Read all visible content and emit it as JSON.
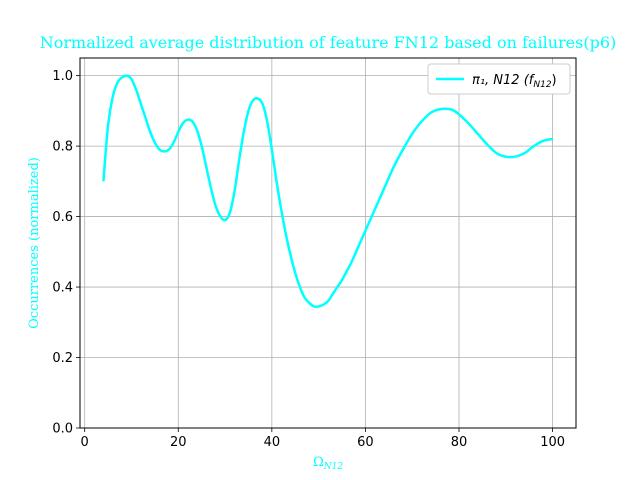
{
  "chart_data": {
    "type": "line",
    "title": "Normalized average distribution of feature FN12 based on failures(p6)",
    "xlabel": "Ω",
    "xlabel_sub": "N12",
    "ylabel": "Occurrences (normalized)",
    "xlim": [
      -1,
      105
    ],
    "ylim": [
      0.0,
      1.05
    ],
    "xticks": [
      0,
      20,
      40,
      60,
      80,
      100
    ],
    "yticks": [
      0.0,
      0.2,
      0.4,
      0.6,
      0.8,
      1.0
    ],
    "xtick_labels": [
      "0",
      "20",
      "40",
      "60",
      "80",
      "100"
    ],
    "ytick_labels": [
      "0.0",
      "0.2",
      "0.4",
      "0.6",
      "0.8",
      "1.0"
    ],
    "grid": true,
    "legend_position": "top-right",
    "series": [
      {
        "name": "π₁, N12 (f",
        "name_sub": "N12",
        "name_tail": ")",
        "color": "#00ffff",
        "x": [
          4,
          5,
          6,
          7,
          8,
          9,
          10,
          11,
          12,
          13,
          14,
          15,
          16,
          17,
          18,
          19,
          20,
          21,
          22,
          23,
          24,
          25,
          26,
          27,
          28,
          29,
          30,
          31,
          32,
          33,
          34,
          35,
          36,
          37,
          38,
          39,
          40,
          41,
          42,
          43,
          44,
          45,
          46,
          47,
          48,
          49,
          50,
          51,
          52,
          53,
          54,
          55,
          56,
          57,
          58,
          59,
          60,
          62,
          64,
          66,
          68,
          70,
          72,
          74,
          76,
          78,
          79,
          80,
          82,
          84,
          86,
          88,
          90,
          92,
          94,
          95,
          96,
          98,
          100
        ],
        "y": [
          0.7,
          0.86,
          0.94,
          0.98,
          0.995,
          1.0,
          0.99,
          0.96,
          0.92,
          0.88,
          0.84,
          0.81,
          0.79,
          0.785,
          0.79,
          0.81,
          0.84,
          0.865,
          0.875,
          0.87,
          0.845,
          0.8,
          0.74,
          0.68,
          0.63,
          0.6,
          0.59,
          0.61,
          0.67,
          0.76,
          0.84,
          0.9,
          0.93,
          0.935,
          0.92,
          0.87,
          0.79,
          0.7,
          0.62,
          0.55,
          0.49,
          0.44,
          0.4,
          0.37,
          0.355,
          0.345,
          0.345,
          0.35,
          0.36,
          0.38,
          0.4,
          0.42,
          0.445,
          0.47,
          0.5,
          0.53,
          0.56,
          0.62,
          0.68,
          0.74,
          0.79,
          0.835,
          0.87,
          0.895,
          0.905,
          0.905,
          0.9,
          0.89,
          0.865,
          0.835,
          0.805,
          0.78,
          0.77,
          0.77,
          0.78,
          0.79,
          0.8,
          0.815,
          0.82
        ]
      }
    ]
  },
  "colors": {
    "series": "#00ffff",
    "title_text": "#00ffff",
    "grid": "#b0b0b0"
  }
}
